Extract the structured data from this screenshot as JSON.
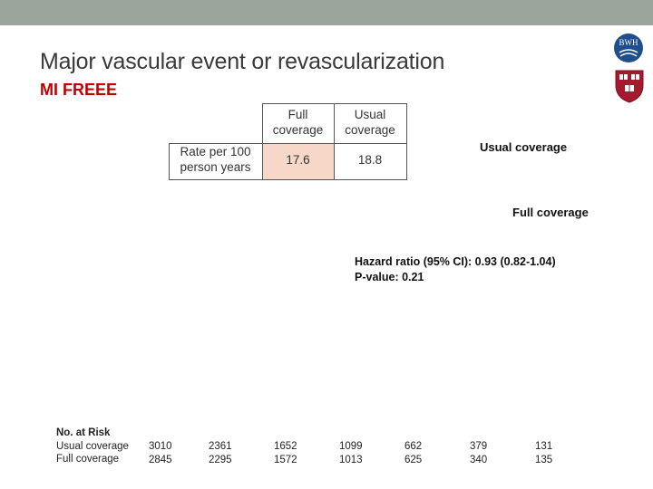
{
  "slide": {
    "title": "Major vascular event or revascularization",
    "subtitle": "MI FREEE"
  },
  "logos": {
    "bwh_text": "BWH",
    "bwh_name": "bwh-logo",
    "shield_name": "harvard-shield-logo"
  },
  "rate_table": {
    "row_label": "Rate per 100 person years",
    "col_full": "Full coverage",
    "col_usual": "Usual coverage",
    "val_full": "17.6",
    "val_usual": "18.8"
  },
  "curve_labels": {
    "usual": "Usual coverage",
    "full": "Full coverage"
  },
  "stats": {
    "hazard_ratio": "Hazard ratio (95% CI): 0.93 (0.82-1.04)",
    "p_value": "P-value: 0.21"
  },
  "at_risk": {
    "heading": "No. at Risk",
    "groups": [
      {
        "label": "Usual coverage",
        "values": [
          "3010",
          "2361",
          "1652",
          "1099",
          "662",
          "379",
          "131"
        ]
      },
      {
        "label": "Full coverage",
        "values": [
          "2845",
          "2295",
          "1572",
          "1013",
          "625",
          "340",
          "135"
        ]
      }
    ]
  },
  "colors": {
    "top_bar": "#9aa69b",
    "subtitle": "#c00000",
    "table_shade": "#f6d7c8",
    "shield_red": "#a6192e"
  }
}
